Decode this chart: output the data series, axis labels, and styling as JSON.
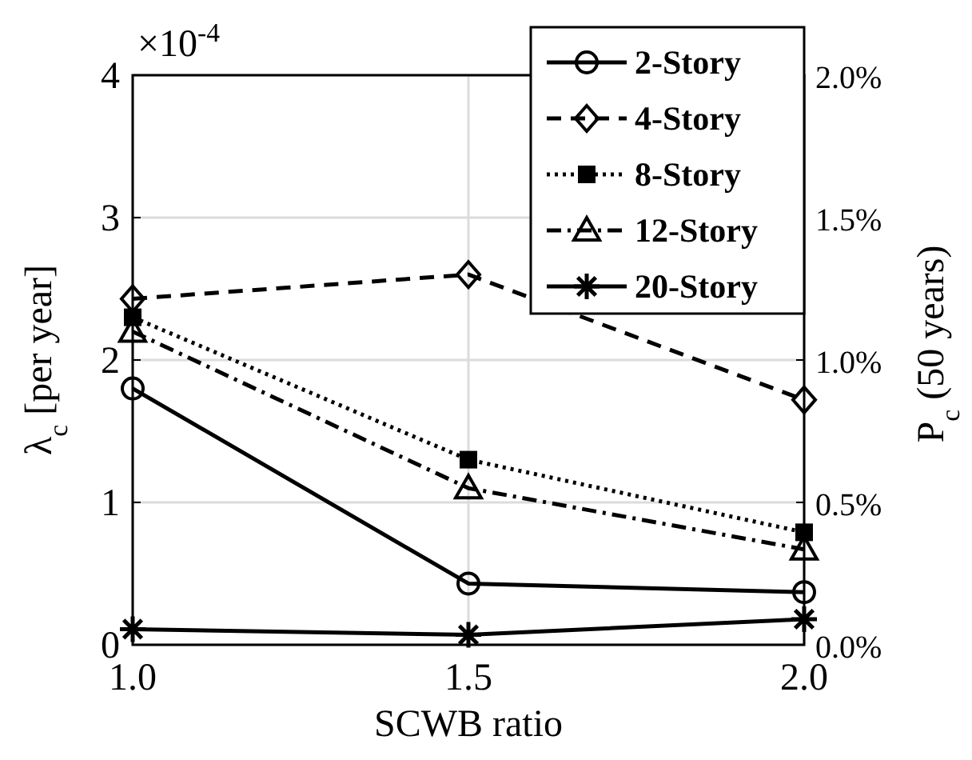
{
  "chart_data": {
    "type": "line",
    "xlabel": "SCWB ratio",
    "ylabel": "λ$_{c}$ [per year]",
    "y2label": "P$_{c}$ (50 years)",
    "annotations": [
      "×10$^{-4}$"
    ],
    "x": [
      1.0,
      1.5,
      2.0
    ],
    "xlim": [
      1.0,
      2.0
    ],
    "xticks": [
      {
        "value": 1.0,
        "label": "1.0"
      },
      {
        "value": 1.5,
        "label": "1.5"
      },
      {
        "value": 2.0,
        "label": "2.0"
      }
    ],
    "ylim": [
      0,
      4
    ],
    "yticks": [
      0,
      1,
      2,
      3,
      4
    ],
    "y2lim": [
      0,
      2.0
    ],
    "y2ticks": [
      {
        "value": 0,
        "label": "0.0%"
      },
      {
        "value": 0.5,
        "label": "0.5%"
      },
      {
        "value": 1.0,
        "label": "1.0%"
      },
      {
        "value": 1.5,
        "label": "1.5%"
      },
      {
        "value": 2.0,
        "label": "2.0%"
      }
    ],
    "grid": true,
    "legend": "top right",
    "series": [
      {
        "name": "2-Story",
        "color": "#000000",
        "values": [
          1.8,
          0.43,
          0.37
        ],
        "marker": "circle",
        "line_style": "solid"
      },
      {
        "name": "4-Story",
        "color": "#000000",
        "values": [
          2.43,
          2.6,
          1.72
        ],
        "marker": "diamond",
        "line_style": "dashed"
      },
      {
        "name": "8-Story",
        "color": "#000000",
        "values": [
          2.3,
          1.3,
          0.79
        ],
        "marker": "square",
        "line_style": "dotted"
      },
      {
        "name": "12-Story",
        "color": "#000000",
        "values": [
          2.2,
          1.1,
          0.67
        ],
        "marker": "triangle",
        "line_style": "dashdot"
      },
      {
        "name": "20-Story",
        "color": "#000000",
        "values": [
          0.11,
          0.07,
          0.18
        ],
        "marker": "cross",
        "line_style": "solid"
      }
    ]
  }
}
